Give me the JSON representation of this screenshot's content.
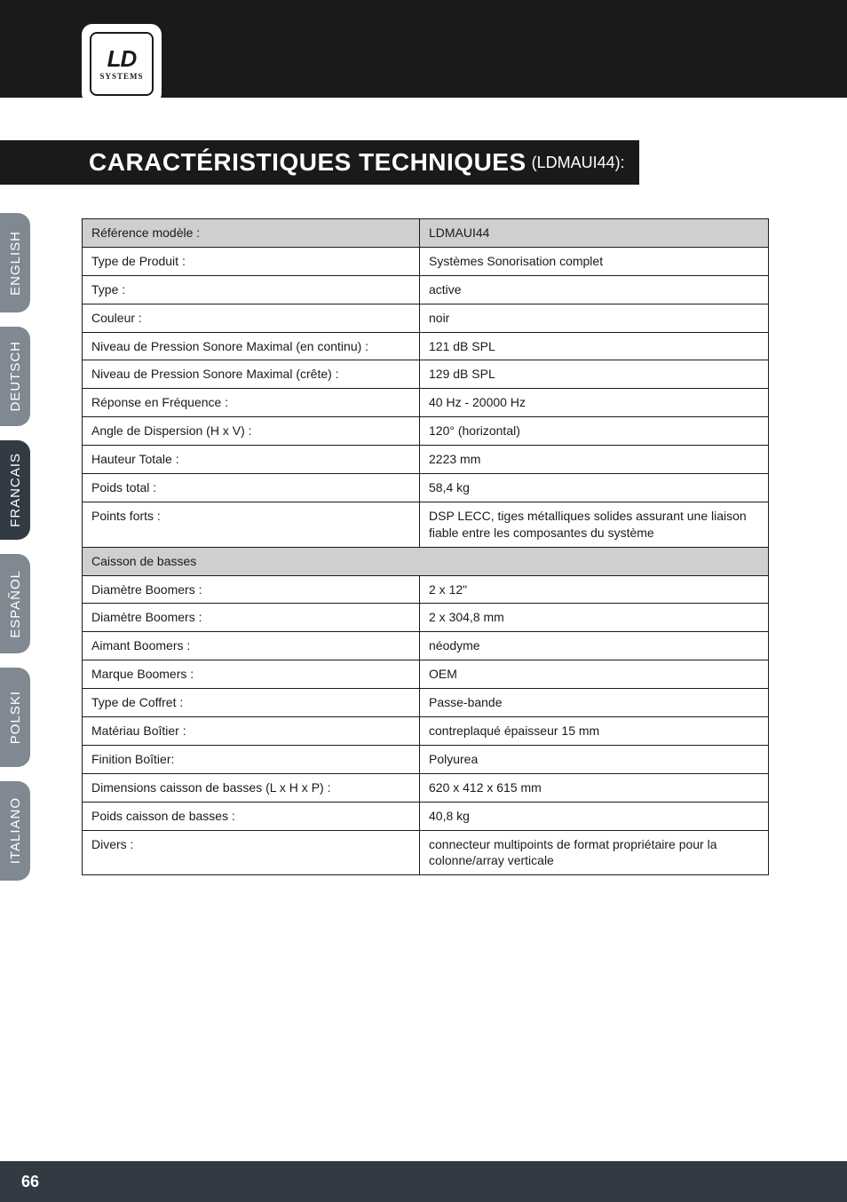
{
  "logo": {
    "main": "LD",
    "sub": "SYSTEMS"
  },
  "title": {
    "main": "CARACTÉRISTIQUES TECHNIQUES",
    "sub": "(LDMAUI44):"
  },
  "langs": [
    {
      "label": "ENGLISH",
      "active": false
    },
    {
      "label": "DEUTSCH",
      "active": false
    },
    {
      "label": "FRANCAIS",
      "active": true
    },
    {
      "label": "ESPAÑOL",
      "active": false
    },
    {
      "label": "POLSKI",
      "active": false
    },
    {
      "label": "ITALIANO",
      "active": false
    }
  ],
  "spec_table": {
    "header": {
      "label": "Référence modèle :",
      "value": "LDMAUI44"
    },
    "rows_top": [
      {
        "label": "Type de Produit :",
        "value": "Systèmes Sonorisation complet"
      },
      {
        "label": "Type :",
        "value": "active"
      },
      {
        "label": "Couleur :",
        "value": "noir"
      },
      {
        "label": "Niveau de Pression Sonore Maximal (en continu) :",
        "value": "121 dB SPL"
      },
      {
        "label": "Niveau de Pression Sonore Maximal (crête) :",
        "value": "129 dB SPL"
      },
      {
        "label": "Réponse en Fréquence :",
        "value": "40 Hz - 20000 Hz"
      },
      {
        "label": "Angle de Dispersion (H x V) :",
        "value": "120° (horizontal)"
      },
      {
        "label": "Hauteur Totale :",
        "value": "2223 mm"
      },
      {
        "label": "Poids total :",
        "value": "58,4 kg"
      },
      {
        "label": "Points forts :",
        "value": "DSP LECC, tiges métalliques solides assurant une liaison fiable entre les composantes du système"
      }
    ],
    "section": "Caisson de basses",
    "rows_bottom": [
      {
        "label": "Diamètre Boomers :",
        "value": "2 x 12\""
      },
      {
        "label": "Diamètre Boomers :",
        "value": "2 x 304,8 mm"
      },
      {
        "label": "Aimant Boomers :",
        "value": "néodyme"
      },
      {
        "label": "Marque Boomers :",
        "value": "OEM"
      },
      {
        "label": "Type de Coffret :",
        "value": "Passe-bande"
      },
      {
        "label": "Matériau Boîtier :",
        "value": "contreplaqué épaisseur 15 mm"
      },
      {
        "label": "Finition Boîtier:",
        "value": "Polyurea"
      },
      {
        "label": "Dimensions caisson de basses (L x H x P) :",
        "value": "620 x 412 x 615 mm"
      },
      {
        "label": "Poids caisson de basses :",
        "value": "40,8 kg"
      },
      {
        "label": "Divers :",
        "value": "connecteur multipoints de format propriétaire pour la colonne/array verticale"
      }
    ]
  },
  "colors": {
    "dark": "#1a1a1a",
    "tab_inactive": "#808891",
    "tab_active": "#323a44",
    "table_header_bg": "#cfcfcf",
    "white": "#ffffff"
  },
  "page_number": "66"
}
